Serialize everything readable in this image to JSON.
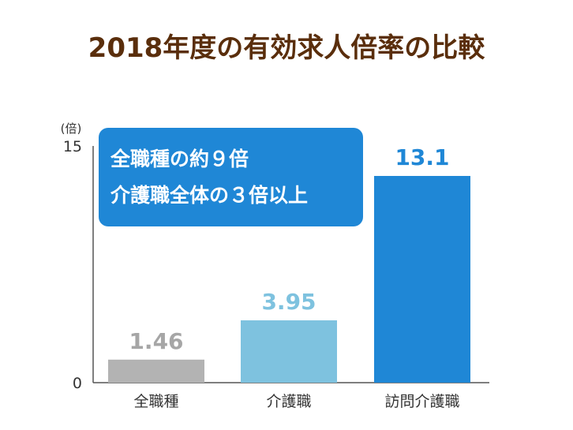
{
  "colors": {
    "title": "#5a2e0c",
    "axis": "#555555",
    "callout_bg": "#1f87d6",
    "callout_text": "#ffffff"
  },
  "callout": {
    "lines": [
      "全職種の約９倍",
      "介護職全体の３倍以上"
    ]
  },
  "chart_data": {
    "type": "bar",
    "title": "2018年度の有効求人倍率の比較",
    "ylabel": "(倍)",
    "xlabel": "",
    "ylim": [
      0,
      15
    ],
    "yticks": [
      "0",
      "15"
    ],
    "categories": [
      "全職種",
      "介護職",
      "訪問介護職"
    ],
    "values": [
      1.46,
      3.95,
      13.1
    ],
    "value_labels": [
      "1.46",
      "3.95",
      "13.1"
    ],
    "bar_colors": [
      "#b3b3b3",
      "#7ec2df",
      "#1f87d6"
    ],
    "grid": false,
    "legend": "none"
  }
}
